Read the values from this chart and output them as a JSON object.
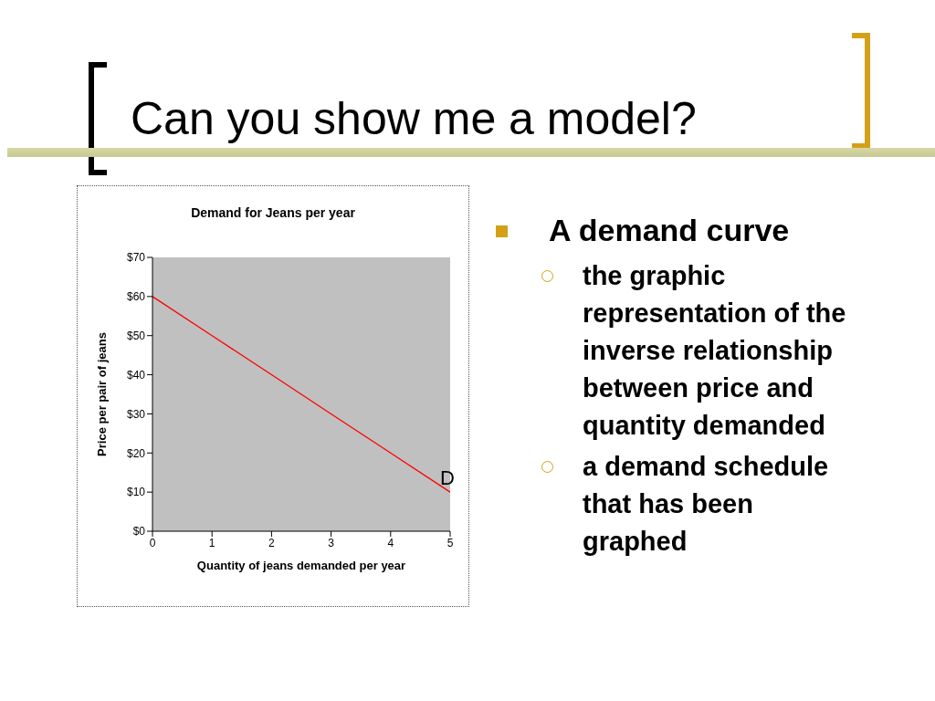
{
  "chart_data": [
    {
      "type": "line",
      "title": "Demand for Jeans per year",
      "xlabel": "Quantity of jeans demanded per year",
      "ylabel": "Price per pair of jeans",
      "x": [
        0,
        1,
        2,
        3,
        4,
        5
      ],
      "series": [
        {
          "color": "#ff0000",
          "values": [
            60,
            50,
            40,
            30,
            20,
            10
          ]
        }
      ],
      "xlim": [
        0,
        5
      ],
      "xticks": [
        0,
        1,
        2,
        3,
        4,
        5
      ],
      "ylim": [
        0,
        70
      ],
      "yticks": [
        {
          "value": 0,
          "label": "$0"
        },
        {
          "value": 10,
          "label": "$10"
        },
        {
          "value": 20,
          "label": "$20"
        },
        {
          "value": 30,
          "label": "$30"
        },
        {
          "value": 40,
          "label": "$40"
        },
        {
          "value": 50,
          "label": "$50"
        },
        {
          "value": 60,
          "label": "$60"
        },
        {
          "value": 70,
          "label": "$70"
        }
      ],
      "annotations": [
        {
          "text": "D",
          "x": 5,
          "y": 10
        }
      ],
      "grid": false,
      "legend": false
    },
    {
      "type": "other",
      "title": "Can you show me a model?",
      "annotations": [
        "A demand curve",
        "the graphic representation of the inverse relationship between price and quantity demanded",
        "a demand schedule that has been graphed"
      ]
    }
  ]
}
